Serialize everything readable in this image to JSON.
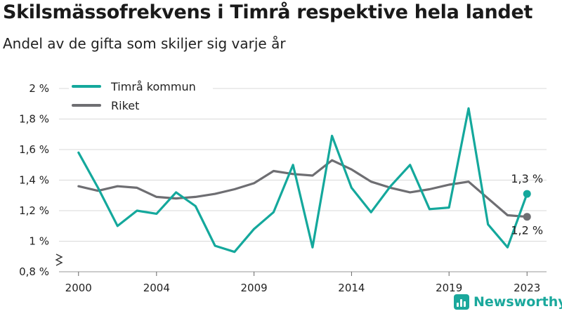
{
  "title": "Skilsmässofrekvens i Timrå respektive hela landet",
  "subtitle": "Andel av de gifta som skiljer sig varje år",
  "brand": "Newsworthy",
  "colors": {
    "timra": "#14a89c",
    "riket": "#6e6e72",
    "grid": "#d9d9d9"
  },
  "chart_data": {
    "type": "line",
    "x_ticks": [
      "2000",
      "2004",
      "2009",
      "2014",
      "2019",
      "2023"
    ],
    "y_ticks": [
      "0,8 %",
      "1 %",
      "1,2 %",
      "1,4 %",
      "1,6 %",
      "1,8 %",
      "2 %"
    ],
    "ylim": [
      0.8,
      2.0
    ],
    "xlim": [
      1999,
      2024
    ],
    "axis_break": true,
    "legend_position": "top-left",
    "series": [
      {
        "name": "Timrå kommun",
        "color": "#14a89c",
        "x": [
          2000,
          2001,
          2002,
          2003,
          2004,
          2005,
          2006,
          2007,
          2008,
          2009,
          2010,
          2011,
          2012,
          2013,
          2014,
          2015,
          2016,
          2017,
          2018,
          2019,
          2020,
          2021,
          2022,
          2023
        ],
        "y": [
          1.58,
          1.35,
          1.1,
          1.2,
          1.18,
          1.32,
          1.23,
          0.97,
          0.93,
          1.08,
          1.19,
          1.5,
          0.96,
          1.69,
          1.35,
          1.19,
          1.36,
          1.5,
          1.21,
          1.22,
          1.87,
          1.11,
          0.96,
          1.31
        ],
        "end_label": "1,3 %"
      },
      {
        "name": "Riket",
        "color": "#6e6e72",
        "x": [
          2000,
          2001,
          2002,
          2003,
          2004,
          2005,
          2006,
          2007,
          2008,
          2009,
          2010,
          2011,
          2012,
          2013,
          2014,
          2015,
          2016,
          2017,
          2018,
          2019,
          2020,
          2021,
          2022,
          2023
        ],
        "y": [
          1.36,
          1.33,
          1.36,
          1.35,
          1.29,
          1.28,
          1.29,
          1.31,
          1.34,
          1.38,
          1.46,
          1.44,
          1.43,
          1.53,
          1.47,
          1.39,
          1.35,
          1.32,
          1.34,
          1.37,
          1.39,
          1.28,
          1.17,
          1.16
        ],
        "end_label": "1,2 %"
      }
    ]
  }
}
